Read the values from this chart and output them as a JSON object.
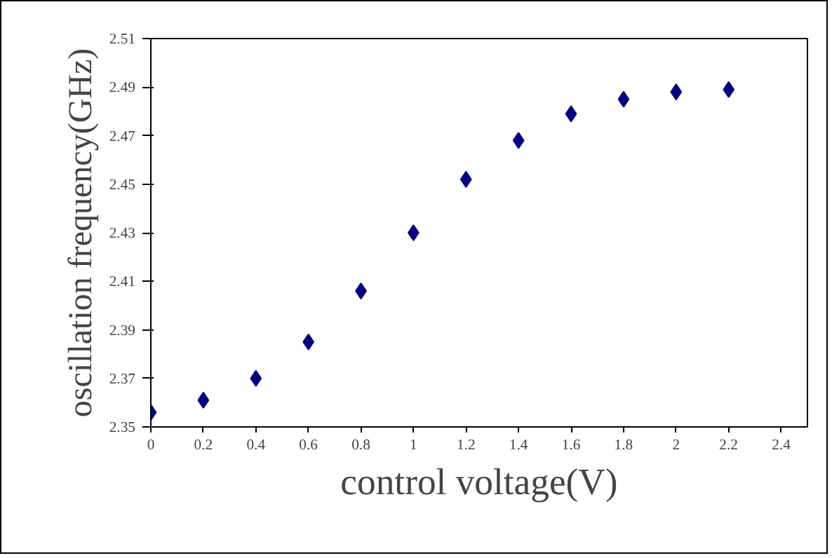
{
  "chart_data": {
    "type": "scatter",
    "xlabel": "control voltage(V)",
    "ylabel": "oscillation frequency(GHz)",
    "x": [
      0,
      0.2,
      0.4,
      0.6,
      0.8,
      1.0,
      1.2,
      1.4,
      1.6,
      1.8,
      2.0,
      2.2
    ],
    "series": [
      {
        "color": "#000080",
        "values": [
          2.356,
          2.361,
          2.37,
          2.385,
          2.406,
          2.43,
          2.452,
          2.468,
          2.479,
          2.485,
          2.488,
          2.489
        ]
      }
    ],
    "xlim": [
      0,
      2.5
    ],
    "xticks": [
      0,
      0.2,
      0.4,
      0.6,
      0.8,
      {
        "value": 1,
        "label": "1"
      },
      1.2,
      1.4,
      1.6,
      1.8,
      {
        "value": 2,
        "label": "2"
      },
      2.2,
      2.4
    ],
    "ylim": [
      2.35,
      2.51
    ],
    "yticks": [
      2.35,
      2.37,
      2.39,
      2.41,
      2.43,
      2.45,
      2.47,
      2.49,
      2.51
    ],
    "marker": "diamond",
    "grid": false
  }
}
